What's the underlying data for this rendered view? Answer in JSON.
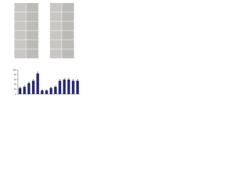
{
  "chart_data": {
    "type": "bar",
    "categories": [
      null,
      null,
      null,
      null,
      null,
      null,
      null,
      null,
      null,
      null,
      null,
      null,
      null,
      null
    ],
    "values": [
      25,
      30,
      45,
      55,
      85,
      15,
      15,
      25,
      30,
      55,
      60,
      60,
      55,
      55
    ],
    "errors": [
      4,
      4,
      5,
      5,
      6,
      3,
      3,
      4,
      4,
      5,
      5,
      5,
      5,
      5
    ],
    "color": "#27287a",
    "ylim": [
      0,
      100
    ],
    "yticks": [
      0,
      20,
      40,
      60,
      80,
      100
    ]
  }
}
